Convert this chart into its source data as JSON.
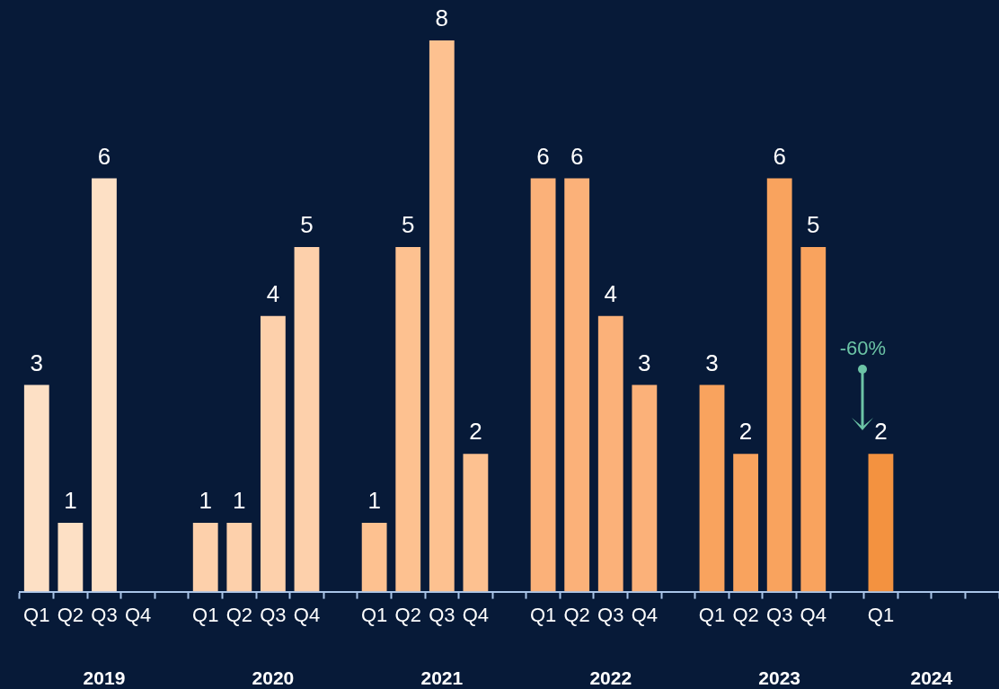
{
  "chart_data": {
    "type": "bar",
    "categories": [
      "Q1",
      "Q2",
      "Q3",
      "Q4",
      null,
      "Q1",
      "Q2",
      "Q3",
      "Q4",
      null,
      "Q1",
      "Q2",
      "Q3",
      "Q4",
      null,
      "Q1",
      "Q2",
      "Q3",
      "Q4",
      null,
      "Q1",
      "Q2",
      "Q3",
      "Q4",
      null,
      "Q1",
      null,
      null,
      null
    ],
    "values": [
      3,
      1,
      6,
      null,
      null,
      1,
      1,
      4,
      5,
      null,
      1,
      5,
      8,
      2,
      null,
      6,
      6,
      4,
      3,
      null,
      3,
      2,
      6,
      5,
      null,
      2,
      null,
      null,
      null
    ],
    "colors": [
      "#fde0c5",
      "#fde0c5",
      "#fde0c5",
      "#fde0c5",
      "#fde0c5",
      "#fdd0ab",
      "#fdd0ab",
      "#fdd0ab",
      "#fdd0ab",
      "#fdd0ab",
      "#fdc190",
      "#fdc190",
      "#fdc190",
      "#fdc190",
      "#fdc190",
      "#fbb179",
      "#fbb179",
      "#fbb179",
      "#fbb179",
      "#fbb179",
      "#f9a35e",
      "#f9a35e",
      "#f9a35e",
      "#f9a35e",
      "#f9a35e",
      "#f39240",
      "#f39240",
      "#f39240",
      "#f39240"
    ],
    "data_labels": true,
    "relative": false,
    "annotations": [
      "2019",
      "2020",
      "2021",
      "2022",
      "2023",
      "2024",
      "-60%"
    ]
  }
}
